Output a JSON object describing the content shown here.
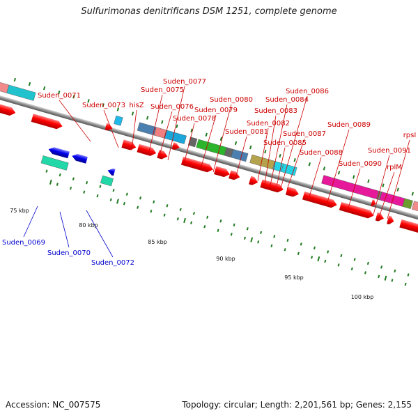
{
  "title": "Sulfurimonas denitrificans DSM 1251, complete genome",
  "accession": "Accession: NC_007575",
  "topology": "Topology: circular; Length: 2,201,561 bp; Genes: 2,155",
  "colors": {
    "forward_label": "#cc0000",
    "reverse_label": "#0000cc",
    "backbone": "#8c8c8c",
    "tick": "#1f7a1f",
    "forward_cds": "#ff0000",
    "reverse_cds": "#0000ee"
  },
  "scale_labels": [
    "75 kbp",
    "80 kbp",
    "85 kbp",
    "90 kbp",
    "95 kbp",
    "100 kbp"
  ],
  "forward_gene_labels": [
    "Suden_0071",
    "Suden_0073",
    "hisZ",
    "Suden_0075",
    "Suden_0076",
    "Suden_0077",
    "Suden_0078",
    "Suden_0079",
    "Suden_0080",
    "Suden_0081",
    "Suden_0082",
    "Suden_0083",
    "Suden_0084",
    "Suden_0085",
    "Suden_0086",
    "Suden_0087",
    "Suden_0088",
    "Suden_0089",
    "Suden_0090",
    "Suden_0091",
    "rplM",
    "rpsI"
  ],
  "reverse_gene_labels": [
    "Suden_0069",
    "Suden_0070",
    "Suden_0072"
  ]
}
